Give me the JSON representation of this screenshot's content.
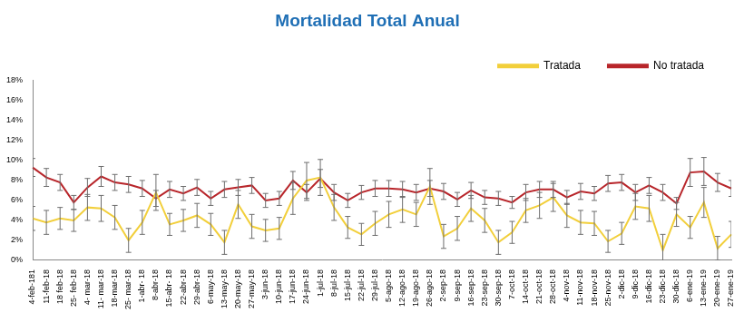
{
  "chart_data": {
    "type": "line",
    "title": "Mortalidad Total Anual",
    "categories": [
      "4-feb-181",
      "11-feb-18",
      "18 feb-18",
      "25- feb-18",
      "4- mar-18",
      "11- mar-18",
      "18-mar-18",
      "25- mar-18",
      "1-abr- 18",
      "8-abr-18",
      "15-abr- 18",
      "22-abr-18",
      "29-abr-18",
      "6-may-18",
      "13-may-18",
      "20-may-18",
      "27-may-18",
      "3-jun-18",
      "10-jun-18",
      "17-jun-18",
      "24-jun-18",
      "1-jul-18",
      "8-jul-18",
      "15-jul-18",
      "22-jul-18",
      "29-jul-18",
      "5-ago-18",
      "12-ago-18",
      "19-ago-18",
      "26-ago-18",
      "2-sep-18",
      "9-sep-18",
      "16-sep-18",
      "23-sep-18",
      "30-sep-18",
      "7-oct-18",
      "14-oct-18",
      "21-oct-18",
      "28-oct-18",
      "4-nov-18",
      "11-nov-18",
      "18-nov-18",
      "25-nov-18",
      "2-dic-18",
      "9-dic-18",
      "16-dic-18",
      "23-dic-18",
      "30-dic-18",
      "6-ene-19",
      "13-ene-19",
      "20-ene-19",
      "27-ene-19"
    ],
    "series": [
      {
        "name": "Tratada",
        "color": "#f2cf3b",
        "values": [
          4.2,
          3.8,
          4.2,
          4.0,
          5.3,
          5.2,
          4.3,
          2.0,
          3.8,
          6.8,
          3.6,
          4.0,
          4.5,
          3.6,
          1.8,
          5.6,
          3.4,
          3.0,
          3.2,
          6.2,
          8.0,
          8.3,
          5.3,
          3.3,
          2.6,
          3.7,
          4.6,
          5.1,
          4.6,
          7.4,
          2.4,
          3.2,
          5.2,
          4.0,
          1.8,
          2.8,
          5.0,
          5.5,
          6.3,
          4.5,
          3.8,
          3.7,
          1.9,
          2.7,
          5.4,
          5.2,
          1.0,
          4.6,
          3.3,
          5.8,
          1.2,
          2.6
        ],
        "errors": [
          1.2,
          1.2,
          1.1,
          1.1,
          1.3,
          1.3,
          1.2,
          1.2,
          1.2,
          1.8,
          1.1,
          1.1,
          1.2,
          1.1,
          1.2,
          1.4,
          1.2,
          1.1,
          1.1,
          1.6,
          1.8,
          1.8,
          1.3,
          1.1,
          1.1,
          1.2,
          1.3,
          1.3,
          1.2,
          1.8,
          1.2,
          1.2,
          1.3,
          1.2,
          1.2,
          1.1,
          1.2,
          1.3,
          1.4,
          1.2,
          1.2,
          1.2,
          1.1,
          1.1,
          1.3,
          1.3,
          1.6,
          1.2,
          1.1,
          1.5,
          1.2,
          1.3
        ]
      },
      {
        "name": "No tratada",
        "color": "#b8262b",
        "values": [
          9.3,
          8.3,
          7.8,
          5.8,
          7.3,
          8.4,
          7.8,
          7.6,
          7.2,
          6.2,
          7.1,
          6.7,
          7.3,
          6.2,
          7.1,
          7.3,
          7.5,
          6.0,
          6.2,
          8.0,
          6.8,
          8.2,
          6.8,
          6.0,
          6.8,
          7.2,
          7.2,
          7.1,
          6.8,
          7.2,
          6.9,
          6.1,
          7.0,
          6.3,
          6.2,
          5.8,
          6.8,
          7.1,
          7.1,
          6.3,
          6.9,
          6.7,
          7.7,
          7.8,
          6.8,
          7.5,
          6.8,
          5.7,
          8.8,
          8.9,
          7.8,
          7.2
        ],
        "errors": [
          0.9,
          0.9,
          0.8,
          0.7,
          0.9,
          1.0,
          0.8,
          0.8,
          0.8,
          0.8,
          0.8,
          0.7,
          0.8,
          0.7,
          0.8,
          0.8,
          0.8,
          0.7,
          0.7,
          0.9,
          0.8,
          0.9,
          0.8,
          0.7,
          0.7,
          0.8,
          0.8,
          0.8,
          0.8,
          0.8,
          0.8,
          0.7,
          0.8,
          0.7,
          0.7,
          0.6,
          0.8,
          0.8,
          0.8,
          0.7,
          0.8,
          0.7,
          0.8,
          0.8,
          0.8,
          0.8,
          0.8,
          0.6,
          1.4,
          1.4,
          0.9,
          0.8
        ]
      }
    ],
    "ylim": [
      0,
      18
    ],
    "yticks": [
      {
        "value": 0,
        "label": "0%"
      },
      {
        "value": 2,
        "label": "2%"
      },
      {
        "value": 4,
        "label": "4%"
      },
      {
        "value": 6,
        "label": "6%"
      },
      {
        "value": 8,
        "label": "8%"
      },
      {
        "value": 10,
        "label": "10%"
      },
      {
        "value": 12,
        "label": "12%"
      },
      {
        "value": 14,
        "label": "14%"
      },
      {
        "value": 16,
        "label": "16%"
      },
      {
        "value": 18,
        "label": "18%"
      }
    ],
    "grid": false,
    "legend": "top-right"
  }
}
